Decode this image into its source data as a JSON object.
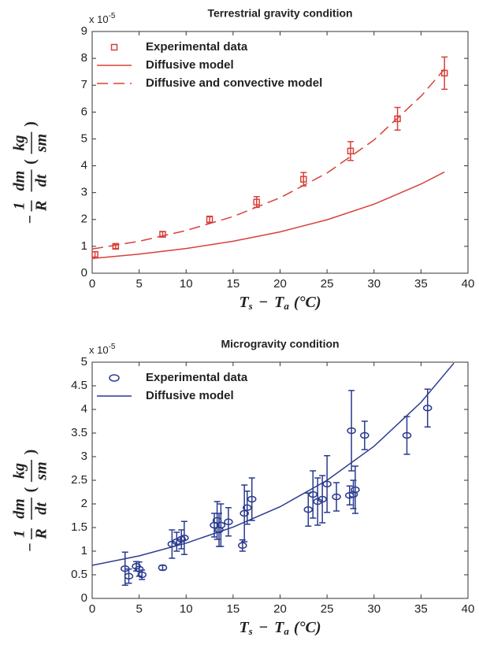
{
  "chart_data": [
    {
      "type": "scatter",
      "title": "Terrestrial gravity condition",
      "y_multiplier": {
        "base": "x 10",
        "exponent": "-5"
      },
      "ylabel": {
        "sign": "−",
        "num1": "1",
        "den1": "R",
        "num2": "dm",
        "den2": "dt",
        "open": "(",
        "num3": "kg",
        "den3": "sm",
        "close": ")"
      },
      "xlabel": {
        "a": "T",
        "a_sub": "s",
        "op": "−",
        "b": "T",
        "b_sub": "a",
        "unit": "(°C)"
      },
      "xlim": [
        0,
        40
      ],
      "xticks": [
        0,
        5,
        10,
        15,
        20,
        25,
        30,
        35,
        40
      ],
      "ylim": [
        0,
        9
      ],
      "yticks": [
        0,
        1,
        2,
        3,
        4,
        5,
        6,
        7,
        8,
        9
      ],
      "grid": false,
      "legend": "upper left",
      "series": [
        {
          "name": "Experimental data",
          "kind": "points",
          "marker": "square",
          "color": "#d8403a",
          "x": [
            0.3,
            2.5,
            7.5,
            12.5,
            17.5,
            22.5,
            27.5,
            32.5,
            37.5
          ],
          "values": [
            0.7,
            1.0,
            1.45,
            2.0,
            2.65,
            3.5,
            4.55,
            5.75,
            7.45
          ],
          "errors": [
            0.1,
            0.08,
            0.1,
            0.12,
            0.2,
            0.25,
            0.35,
            0.42,
            0.6
          ]
        },
        {
          "name": "Diffusive model",
          "kind": "line",
          "linestyle": "solid",
          "color": "#d8403a",
          "x": [
            0,
            5,
            10,
            15,
            20,
            25,
            30,
            35,
            37.5
          ],
          "values": [
            0.55,
            0.71,
            0.92,
            1.19,
            1.54,
            1.99,
            2.57,
            3.32,
            3.77
          ]
        },
        {
          "name": "Diffusive and convective model",
          "kind": "line",
          "linestyle": "dashed",
          "color": "#d8403a",
          "x": [
            0,
            5,
            10,
            15,
            20,
            25,
            30,
            35,
            37.5
          ],
          "values": [
            0.9,
            1.19,
            1.59,
            2.11,
            2.81,
            3.73,
            4.96,
            6.59,
            7.6
          ]
        }
      ]
    },
    {
      "type": "scatter",
      "title": "Microgravity condition",
      "y_multiplier": {
        "base": "x 10",
        "exponent": "-5"
      },
      "ylabel": {
        "sign": "−",
        "num1": "1",
        "den1": "R",
        "num2": "dm",
        "den2": "dt",
        "open": "(",
        "num3": "kg",
        "den3": "sm",
        "close": ")"
      },
      "xlabel": {
        "a": "T",
        "a_sub": "s",
        "op": "−",
        "b": "T",
        "b_sub": "a",
        "unit": "(°C)"
      },
      "xlim": [
        0,
        40
      ],
      "xticks": [
        0,
        5,
        10,
        15,
        20,
        25,
        30,
        35,
        40
      ],
      "ylim": [
        0,
        5
      ],
      "yticks": [
        0,
        0.5,
        1,
        1.5,
        2,
        2.5,
        3,
        3.5,
        4,
        4.5,
        5
      ],
      "grid": false,
      "legend": "upper left",
      "series": [
        {
          "name": "Experimental data",
          "kind": "points",
          "marker": "circle",
          "color": "#2b3a8f",
          "x": [
            3.5,
            3.9,
            4.7,
            5.0,
            5.3,
            7.5,
            8.5,
            9.0,
            9.5,
            9.8,
            13.0,
            13.3,
            13.5,
            13.7,
            14.5,
            16.0,
            16.2,
            16.5,
            17.0,
            23.0,
            23.5,
            24.0,
            24.5,
            25.0,
            26.0,
            27.4,
            27.6,
            27.8,
            28.0,
            29.0,
            33.5,
            35.7
          ],
          "values": [
            0.63,
            0.47,
            0.68,
            0.62,
            0.5,
            0.65,
            1.15,
            1.2,
            1.25,
            1.28,
            1.55,
            1.65,
            1.45,
            1.55,
            1.62,
            1.12,
            1.8,
            1.92,
            2.1,
            1.88,
            2.2,
            2.05,
            2.1,
            2.42,
            2.15,
            2.18,
            3.55,
            2.2,
            2.3,
            3.45,
            3.45,
            4.03
          ],
          "errors": [
            0.35,
            0.15,
            0.1,
            0.15,
            0.1,
            0.05,
            0.3,
            0.2,
            0.2,
            0.35,
            0.25,
            0.4,
            0.35,
            0.45,
            0.3,
            0.12,
            0.6,
            0.35,
            0.45,
            0.35,
            0.5,
            0.5,
            0.5,
            0.6,
            0.3,
            0.2,
            0.85,
            0.3,
            0.5,
            0.3,
            0.4,
            0.4
          ]
        },
        {
          "name": "Diffusive model",
          "kind": "line",
          "linestyle": "solid",
          "color": "#2b3a8f",
          "x": [
            0,
            5,
            10,
            15,
            20,
            25,
            30,
            35,
            38.5
          ],
          "values": [
            0.7,
            0.9,
            1.17,
            1.51,
            1.94,
            2.5,
            3.22,
            4.15,
            4.98
          ]
        }
      ]
    }
  ]
}
